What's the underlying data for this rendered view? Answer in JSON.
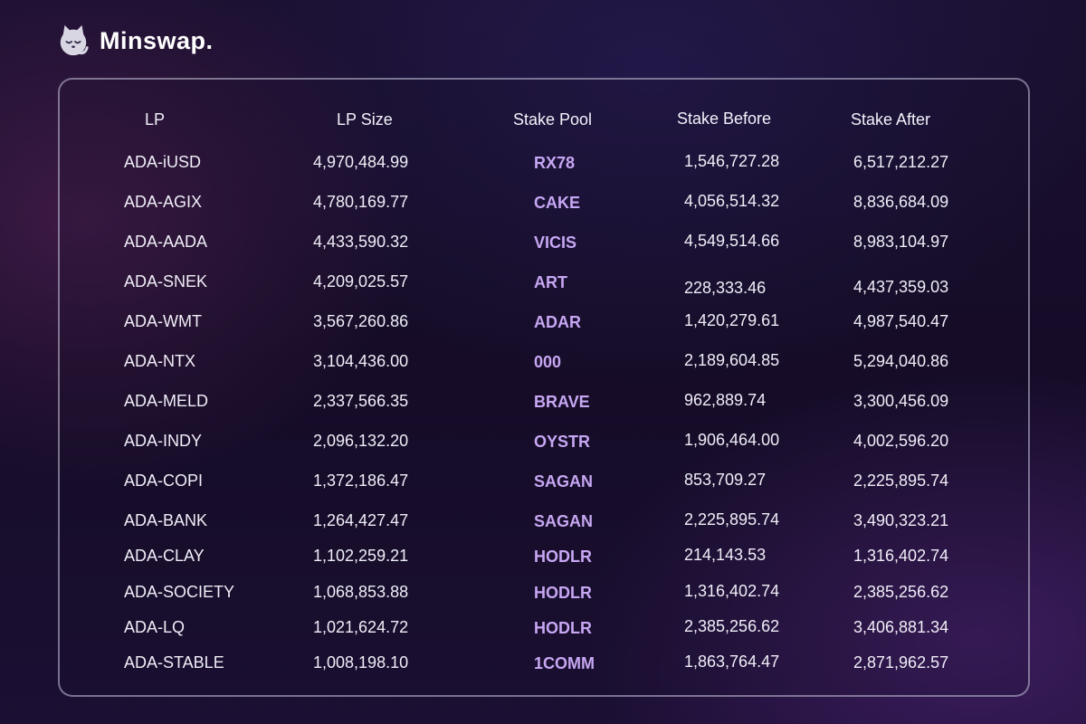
{
  "brand": {
    "logo_icon": "cat-icon",
    "name": "Minswap."
  },
  "colors": {
    "pool_accent": "#c7a7f3",
    "text": "#f0eef8",
    "border": "#c8c4dc"
  },
  "table": {
    "headers": {
      "lp": "LP",
      "lp_size": "LP Size",
      "stake_pool": "Stake Pool",
      "stake_before": "Stake Before",
      "stake_after": "Stake After"
    },
    "rows": [
      {
        "lp": "ADA-iUSD",
        "lp_size": "4,970,484.99",
        "pool": "RX78",
        "before": "1,546,727.28",
        "after": "6,517,212.27"
      },
      {
        "lp": "ADA-AGIX",
        "lp_size": "4,780,169.77",
        "pool": "CAKE",
        "before": "4,056,514.32",
        "after": "8,836,684.09"
      },
      {
        "lp": "ADA-AADA",
        "lp_size": "4,433,590.32",
        "pool": "VICIS",
        "before": "4,549,514.66",
        "after": "8,983,104.97"
      },
      {
        "lp": "ADA-SNEK",
        "lp_size": "4,209,025.57",
        "pool": "ART",
        "before": "228,333.46",
        "after": "4,437,359.03"
      },
      {
        "lp": "ADA-WMT",
        "lp_size": "3,567,260.86",
        "pool": "ADAR",
        "before": "1,420,279.61",
        "after": "4,987,540.47"
      },
      {
        "lp": "ADA-NTX",
        "lp_size": "3,104,436.00",
        "pool": "000",
        "before": "2,189,604.85",
        "after": "5,294,040.86"
      },
      {
        "lp": "ADA-MELD",
        "lp_size": "2,337,566.35",
        "pool": "BRAVE",
        "before": "962,889.74",
        "after": "3,300,456.09"
      },
      {
        "lp": "ADA-INDY",
        "lp_size": "2,096,132.20",
        "pool": "OYSTR",
        "before": "1,906,464.00",
        "after": "4,002,596.20"
      },
      {
        "lp": "ADA-COPI",
        "lp_size": "1,372,186.47",
        "pool": "SAGAN",
        "before": "853,709.27",
        "after": "2,225,895.74"
      },
      {
        "lp": "ADA-BANK",
        "lp_size": "1,264,427.47",
        "pool": "SAGAN",
        "before": "2,225,895.74",
        "after": "3,490,323.21"
      },
      {
        "lp": "ADA-CLAY",
        "lp_size": "1,102,259.21",
        "pool": "HODLR",
        "before": "214,143.53",
        "after": "1,316,402.74"
      },
      {
        "lp": "ADA-SOCIETY",
        "lp_size": "1,068,853.88",
        "pool": "HODLR",
        "before": "1,316,402.74",
        "after": "2,385,256.62"
      },
      {
        "lp": "ADA-LQ",
        "lp_size": "1,021,624.72",
        "pool": "HODLR",
        "before": "2,385,256.62",
        "after": "3,406,881.34"
      },
      {
        "lp": "ADA-STABLE",
        "lp_size": "1,008,198.10",
        "pool": "1COMM",
        "before": "1,863,764.47",
        "after": "2,871,962.57"
      }
    ]
  }
}
